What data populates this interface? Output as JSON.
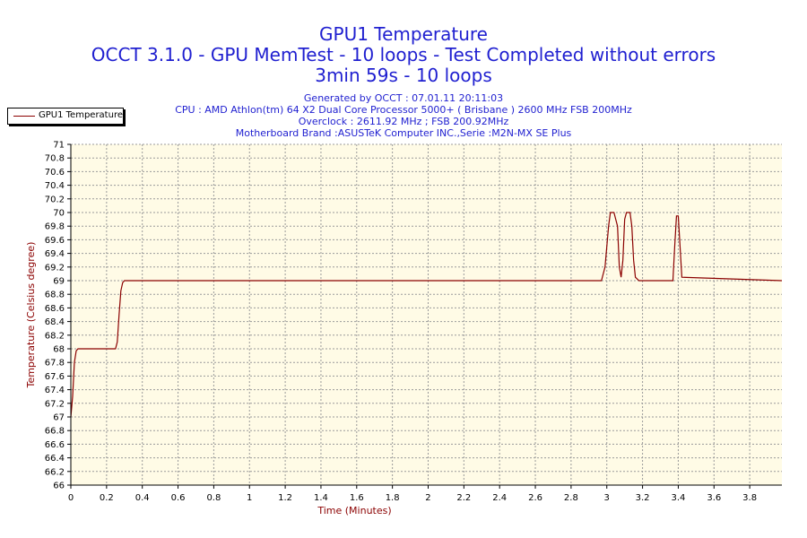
{
  "header": {
    "title": "GPU1 Temperature",
    "subtitle": "OCCT 3.1.0 - GPU MemTest - 10 loops - Test Completed without errors",
    "duration": "3min 59s - 10 loops",
    "generated": "Generated by OCCT : 07.01.11 20:11:03",
    "cpu": "CPU : AMD Athlon(tm) 64 X2 Dual Core Processor 5000+ ( Brisbane ) 2600 MHz FSB 200MHz",
    "overclock": "Overclock : 2611.92 MHz ; FSB 200.92MHz",
    "motherboard": "Motherboard Brand :ASUSTeK Computer INC.,Serie :M2N-MX SE Plus"
  },
  "legend": {
    "label": "GPU1 Temperature"
  },
  "colors": {
    "title": "#1f1fd0",
    "line": "#8b0000",
    "plot_background": "#fffbe6",
    "grid": "#9a9a9a"
  },
  "chart_data": {
    "type": "line",
    "title": "GPU1 Temperature",
    "xlabel": "Time (Minutes)",
    "ylabel": "Temperature (Celsius degree)",
    "xlim": [
      0,
      3.98
    ],
    "ylim": [
      66,
      71
    ],
    "x_ticks": [
      "0",
      "0.2",
      "0.4",
      "0.6",
      "0.8",
      "1",
      "1.2",
      "1.4",
      "1.6",
      "1.8",
      "2",
      "2.2",
      "2.4",
      "2.6",
      "2.8",
      "3",
      "3.2",
      "3.4",
      "3.6",
      "3.8"
    ],
    "y_ticks": [
      "66",
      "66.2",
      "66.4",
      "66.6",
      "66.8",
      "67",
      "67.2",
      "67.4",
      "67.6",
      "67.8",
      "68",
      "68.2",
      "68.4",
      "68.6",
      "68.8",
      "69",
      "69.2",
      "69.4",
      "69.6",
      "69.8",
      "70",
      "70.2",
      "70.4",
      "70.6",
      "70.8",
      "71"
    ],
    "grid": true,
    "legend_position": "top-left",
    "series": [
      {
        "name": "GPU1 Temperature",
        "x": [
          0,
          0.01,
          0.02,
          0.03,
          0.04,
          0.06,
          0.25,
          0.26,
          0.27,
          0.28,
          0.29,
          0.3,
          2.97,
          2.99,
          3.01,
          3.02,
          3.04,
          3.06,
          3.07,
          3.08,
          3.09,
          3.1,
          3.11,
          3.13,
          3.14,
          3.15,
          3.16,
          3.18,
          3.37,
          3.38,
          3.39,
          3.4,
          3.41,
          3.42,
          3.98
        ],
        "y": [
          67,
          67.3,
          67.8,
          67.97,
          68,
          68,
          68,
          68.1,
          68.5,
          68.85,
          68.97,
          69,
          69,
          69.2,
          69.8,
          70,
          70,
          69.8,
          69.2,
          69.05,
          69.3,
          69.9,
          70,
          70,
          69.8,
          69.3,
          69.05,
          69,
          69,
          69.5,
          69.95,
          69.95,
          69.5,
          69.05,
          69
        ]
      }
    ]
  }
}
